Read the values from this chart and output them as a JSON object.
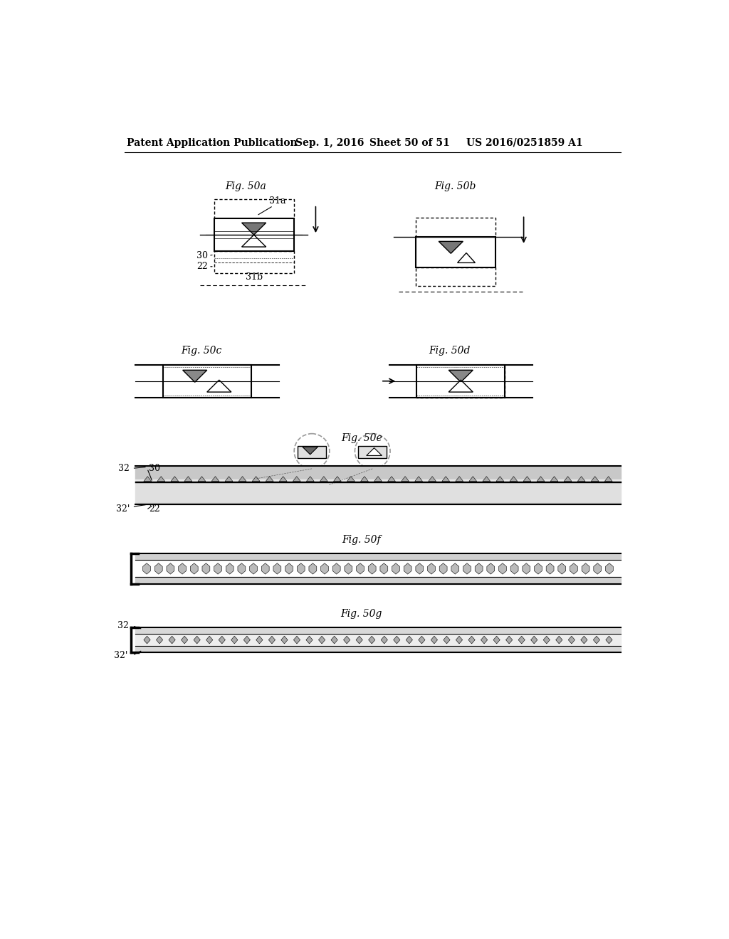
{
  "bg_color": "#ffffff",
  "header_text": "Patent Application Publication",
  "header_date": "Sep. 1, 2016",
  "header_sheet": "Sheet 50 of 51",
  "header_patent": "US 2016/0251859 A1"
}
